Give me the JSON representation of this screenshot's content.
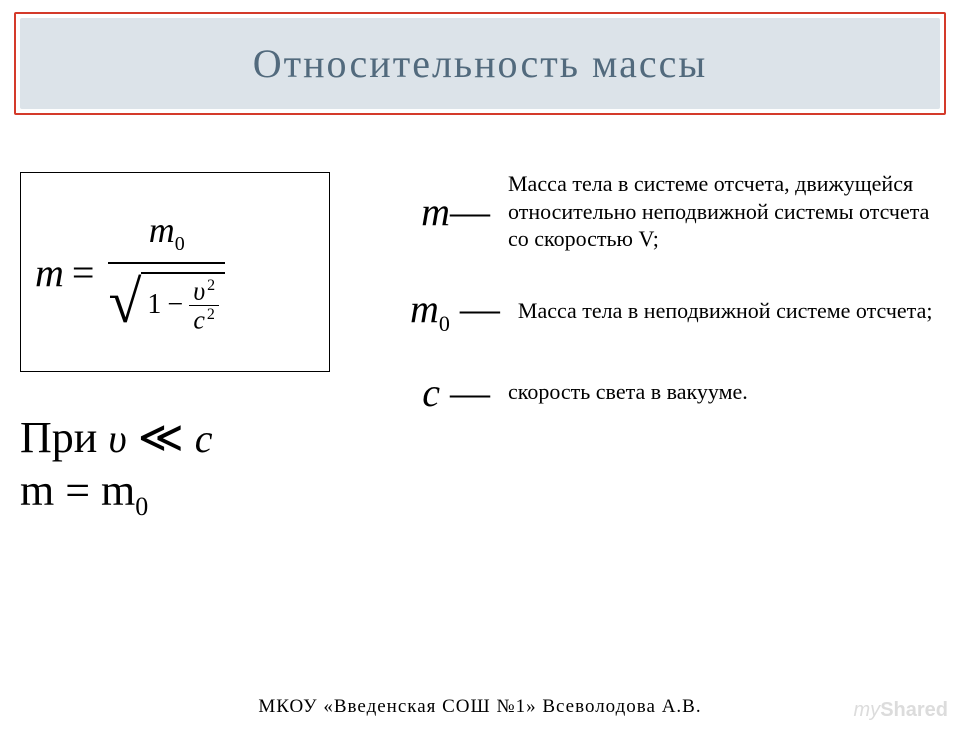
{
  "title": "Относительность массы",
  "formula": {
    "m": "m",
    "eq": "=",
    "m0": "m",
    "m0_sub": "0",
    "one": "1",
    "minus": "−",
    "v": "υ",
    "c": "c",
    "sq": "2"
  },
  "lower": {
    "line1_pre": "При ",
    "line1_v": "υ",
    "line1_ll": " ≪ ",
    "line1_c": "c",
    "line2_pre": "m = m",
    "line2_sub": "0"
  },
  "defs": [
    {
      "sym_main": "m",
      "sym_sub": "",
      "text": "Масса тела в системе отсчета, движущейся относительно неподвижной системы отсчета со скоростью V;"
    },
    {
      "sym_main": "m",
      "sym_sub": "0",
      "text": "Масса тела в неподвижной системе отсчета;"
    },
    {
      "sym_main": "c",
      "sym_sub": "",
      "text": "скорость света в вакууме."
    }
  ],
  "footer": "МКОУ «Введенская СОШ №1» Всеволодова А.В.",
  "watermark_my": "my",
  "watermark_shared": "Shared"
}
